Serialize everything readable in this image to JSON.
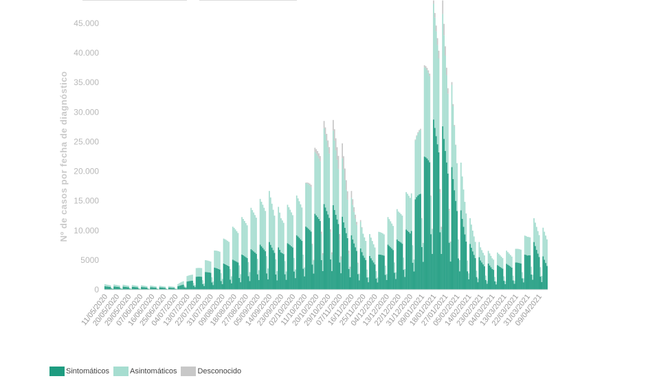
{
  "chart_data": {
    "type": "bar",
    "stacked": true,
    "ylabel": "Nº de casos por fecha de diagnóstico",
    "ylim": [
      0,
      45000
    ],
    "yticks": [
      0,
      5000,
      10000,
      15000,
      20000,
      25000,
      30000,
      35000,
      40000,
      45000
    ],
    "ytick_labels": [
      "0",
      "5000",
      "10.000",
      "15.000",
      "20.000",
      "25.000",
      "30.000",
      "35.000",
      "40.000",
      "45.000"
    ],
    "x_start": "11/05/2020",
    "x_end": "15/04/2021",
    "x_tick_labels": [
      "11/05/2020",
      "20/05/2020",
      "29/05/2020",
      "07/06/2020",
      "16/06/2020",
      "25/06/2020",
      "04/07/2020",
      "13/07/2020",
      "22/07/2020",
      "31/07/2020",
      "09/08/2020",
      "18/08/2020",
      "27/08/2020",
      "05/09/2020",
      "14/09/2020",
      "23/09/2020",
      "02/10/2020",
      "11/10/2020",
      "20/10/2020",
      "29/10/2020",
      "07/11/2020",
      "16/11/2020",
      "25/11/2020",
      "04/12/2020",
      "13/12/2020",
      "22/12/2020",
      "31/12/2020",
      "09/01/2021",
      "18/01/2021",
      "27/01/2021",
      "05/02/2021",
      "14/02/2021",
      "23/02/2021",
      "04/03/2021",
      "13/03/2021",
      "22/03/2021",
      "31/03/2021",
      "09/04/2021"
    ],
    "series": [
      {
        "name": "Sintomáticos",
        "color": "#1e9c80",
        "envelope": [
          [
            "11/05/2020",
            500
          ],
          [
            "04/07/2020",
            300
          ],
          [
            "13/07/2020",
            1200
          ],
          [
            "31/07/2020",
            3000
          ],
          [
            "18/08/2020",
            4500
          ],
          [
            "05/09/2020",
            6500
          ],
          [
            "14/09/2020",
            7000
          ],
          [
            "23/09/2020",
            6000
          ],
          [
            "11/10/2020",
            9000
          ],
          [
            "24/10/2020",
            12500
          ],
          [
            "31/10/2020",
            12800
          ],
          [
            "07/11/2020",
            11500
          ],
          [
            "16/11/2020",
            8000
          ],
          [
            "25/11/2020",
            5500
          ],
          [
            "04/12/2020",
            4500
          ],
          [
            "13/12/2020",
            6500
          ],
          [
            "22/12/2020",
            7500
          ],
          [
            "31/12/2020",
            9500
          ],
          [
            "09/01/2021",
            18000
          ],
          [
            "18/01/2021",
            25000
          ],
          [
            "25/01/2021",
            24000
          ],
          [
            "31/01/2021",
            19000
          ],
          [
            "05/02/2021",
            14000
          ],
          [
            "14/02/2021",
            7000
          ],
          [
            "23/02/2021",
            4500
          ],
          [
            "04/03/2021",
            3500
          ],
          [
            "22/03/2021",
            4000
          ],
          [
            "31/03/2021",
            5500
          ],
          [
            "05/04/2021",
            7000
          ],
          [
            "15/04/2021",
            4000
          ]
        ]
      },
      {
        "name": "Asintomáticos",
        "color": "#a6ddd0",
        "envelope": [
          [
            "11/05/2020",
            300
          ],
          [
            "04/07/2020",
            200
          ],
          [
            "13/07/2020",
            800
          ],
          [
            "31/07/2020",
            2000
          ],
          [
            "18/08/2020",
            5000
          ],
          [
            "05/09/2020",
            6500
          ],
          [
            "14/09/2020",
            7500
          ],
          [
            "23/09/2020",
            5500
          ],
          [
            "11/10/2020",
            6000
          ],
          [
            "24/10/2020",
            11000
          ],
          [
            "31/10/2020",
            11500
          ],
          [
            "07/11/2020",
            9500
          ],
          [
            "16/11/2020",
            5500
          ],
          [
            "25/11/2020",
            3500
          ],
          [
            "04/12/2020",
            3000
          ],
          [
            "13/12/2020",
            4000
          ],
          [
            "22/12/2020",
            4500
          ],
          [
            "31/12/2020",
            6000
          ],
          [
            "09/01/2021",
            12000
          ],
          [
            "18/01/2021",
            17000
          ],
          [
            "25/01/2021",
            16500
          ],
          [
            "31/01/2021",
            13000
          ],
          [
            "05/02/2021",
            8500
          ],
          [
            "14/02/2021",
            4000
          ],
          [
            "23/02/2021",
            2000
          ],
          [
            "04/03/2021",
            1800
          ],
          [
            "22/03/2021",
            2000
          ],
          [
            "31/03/2021",
            3000
          ],
          [
            "05/04/2021",
            3500
          ],
          [
            "15/04/2021",
            4500
          ]
        ]
      },
      {
        "name": "Desconocido",
        "color": "#c8c8c8",
        "envelope": [
          [
            "11/05/2020",
            0
          ],
          [
            "11/10/2020",
            0
          ],
          [
            "24/10/2020",
            1000
          ],
          [
            "31/10/2020",
            1200
          ],
          [
            "07/11/2020",
            2500
          ],
          [
            "16/11/2020",
            1000
          ],
          [
            "25/11/2020",
            0
          ],
          [
            "31/12/2020",
            0
          ],
          [
            "18/01/2021",
            500
          ],
          [
            "25/01/2021",
            2000
          ],
          [
            "31/01/2021",
            500
          ],
          [
            "05/02/2021",
            0
          ],
          [
            "15/04/2021",
            0
          ]
        ]
      }
    ],
    "legend_position": "bottom-left",
    "grid": false
  }
}
